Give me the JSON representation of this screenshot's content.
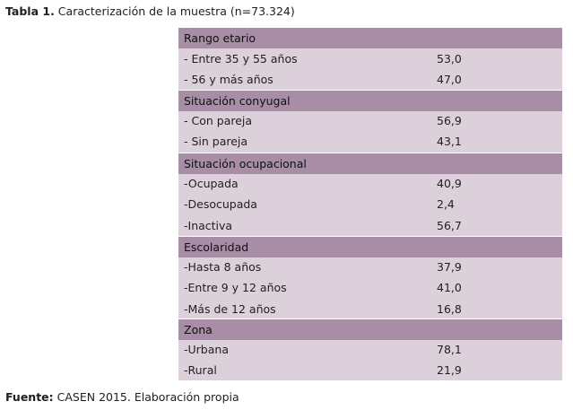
{
  "caption": {
    "prefix": "Tabla 1.",
    "text": " Caracterización de la muestra (n=73.324)"
  },
  "sections": [
    {
      "title": "Rango etario",
      "rows": [
        {
          "label": "- Entre 35 y 55 años",
          "value": "53,0"
        },
        {
          "label": "- 56 y más años",
          "value": "47,0"
        }
      ]
    },
    {
      "title": "Situación conyugal",
      "rows": [
        {
          "label": "- Con pareja",
          "value": "56,9"
        },
        {
          "label": "- Sin pareja",
          "value": "43,1"
        }
      ]
    },
    {
      "title": "Situación ocupacional",
      "rows": [
        {
          "label": "-Ocupada",
          "value": "40,9"
        },
        {
          "label": "-Desocupada",
          "value": "2,4"
        },
        {
          "label": "-Inactiva",
          "value": "56,7"
        }
      ]
    },
    {
      "title": "Escolaridad",
      "rows": [
        {
          "label": "-Hasta 8 años",
          "value": "37,9"
        },
        {
          "label": "-Entre 9 y 12 años",
          "value": "41,0"
        },
        {
          "label": "-Más de 12 años",
          "value": "16,8"
        }
      ]
    },
    {
      "title": "Zona",
      "rows": [
        {
          "label": "-Urbana",
          "value": "78,1"
        },
        {
          "label": "-Rural",
          "value": "21,9"
        }
      ]
    }
  ],
  "footer": {
    "prefix": "Fuente:",
    "text": " CASEN 2015. Elaboración propia"
  },
  "colors": {
    "header_background": "#a78da5",
    "row_background": "#dcd1da"
  }
}
